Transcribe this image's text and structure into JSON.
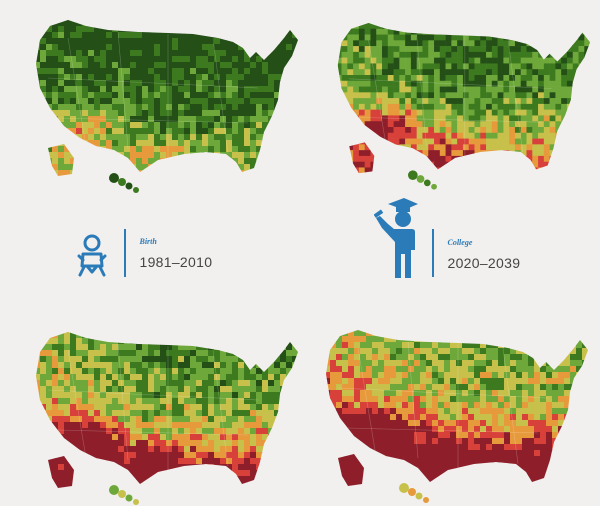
{
  "panels": [
    {
      "stage": "Birth",
      "years": "1981–2010",
      "icon": "baby-icon",
      "heat": 0.08
    },
    {
      "stage": "College",
      "years": "2020–2039",
      "icon": "graduate-icon",
      "heat": 0.35
    },
    {
      "stage": "",
      "years": "",
      "icon": "",
      "heat": 0.6
    },
    {
      "stage": "",
      "years": "",
      "icon": "",
      "heat": 0.85
    }
  ],
  "colors": {
    "background": "#f1f0ee",
    "accent": "#2b7bb9",
    "scale": [
      "#244f17",
      "#3d7a1f",
      "#6fa83a",
      "#c7c04a",
      "#e79a3c",
      "#d8413a",
      "#8e1f2a"
    ]
  }
}
